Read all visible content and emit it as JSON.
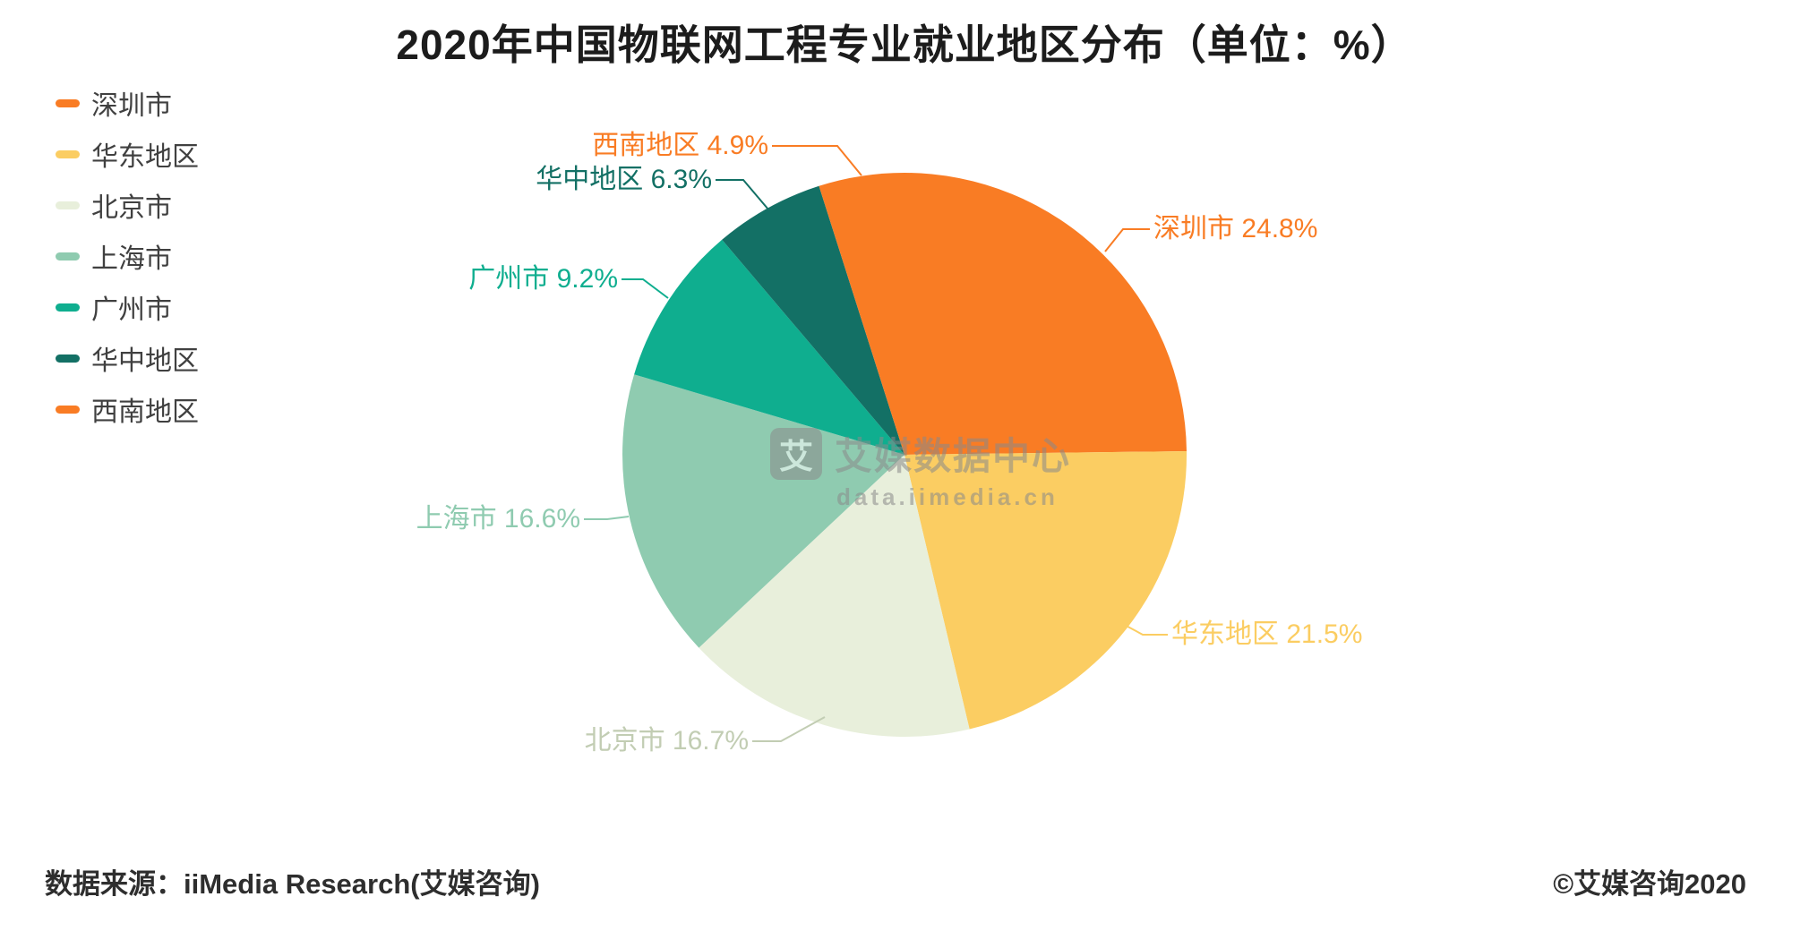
{
  "title": "2020年中国物联网工程专业就业地区分布（单位：%）",
  "watermark": {
    "logo_char": "艾",
    "name": "艾媒数据中心",
    "url": "data.iimedia.cn"
  },
  "footer": {
    "source": "数据来源：iiMedia Research(艾媒咨询)",
    "copyright": "©艾媒咨询2020"
  },
  "chart_data": {
    "type": "pie",
    "title": "2020年中国物联网工程专业就业地区分布（单位：%）",
    "unit": "%",
    "start_angle_deg": 90,
    "direction": "clockwise",
    "legend_position": "top-left",
    "series": [
      {
        "name": "深圳市",
        "value": 24.8,
        "color": "#F97C24",
        "label_color": "#F97C24"
      },
      {
        "name": "华东地区",
        "value": 21.5,
        "color": "#FBCD62",
        "label_color": "#FBCD62"
      },
      {
        "name": "北京市",
        "value": 16.7,
        "color": "#E8EFDB",
        "label_color": "#C2CDB3"
      },
      {
        "name": "上海市",
        "value": 16.6,
        "color": "#8FCBB0",
        "label_color": "#8FCBB0"
      },
      {
        "name": "广州市",
        "value": 9.2,
        "color": "#0FAE8F",
        "label_color": "#0FAE8F"
      },
      {
        "name": "华中地区",
        "value": 6.3,
        "color": "#137065",
        "label_color": "#137065"
      },
      {
        "name": "西南地区",
        "value": 4.9,
        "color": "#F97C24",
        "label_color": "#F97C24"
      }
    ]
  }
}
